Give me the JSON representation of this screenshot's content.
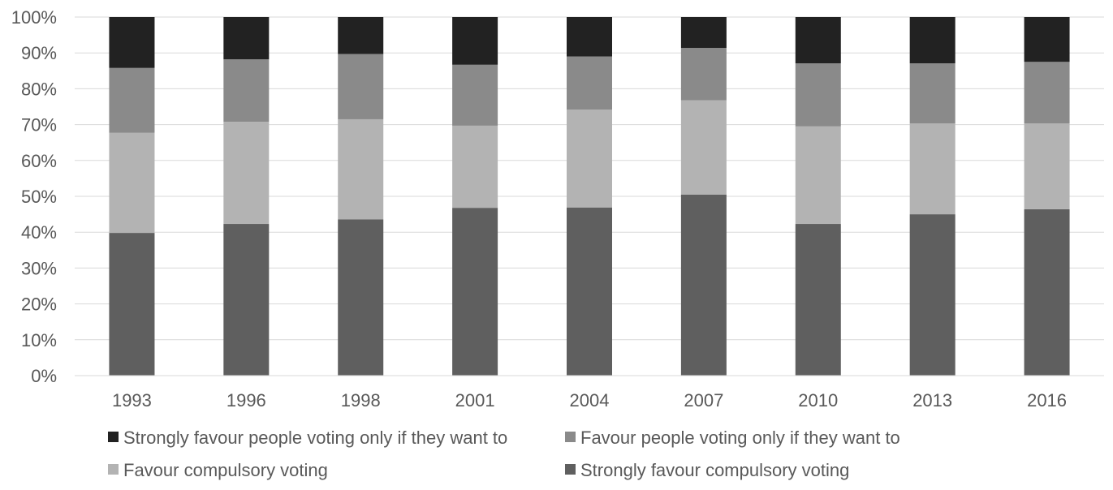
{
  "chart_data": {
    "type": "bar",
    "stacked": true,
    "percent_stacked": true,
    "categories": [
      "1993",
      "1996",
      "1998",
      "2001",
      "2004",
      "2007",
      "2010",
      "2013",
      "2016"
    ],
    "series": [
      {
        "name": "Strongly favour compulsory voting",
        "color": "#5f5f5f",
        "values": [
          39.8,
          42.3,
          43.6,
          46.8,
          46.9,
          50.5,
          42.3,
          45.0,
          46.4
        ]
      },
      {
        "name": "Favour compulsory voting",
        "color": "#b3b3b3",
        "values": [
          27.9,
          28.5,
          27.9,
          22.9,
          27.3,
          26.3,
          27.2,
          25.3,
          23.9
        ]
      },
      {
        "name": "Favour people voting only if they want to",
        "color": "#8a8a8a",
        "values": [
          18.1,
          17.4,
          18.2,
          17.0,
          14.8,
          14.6,
          17.6,
          16.8,
          17.2
        ]
      },
      {
        "name": "Strongly favour people voting only if they want to",
        "color": "#222222",
        "values": [
          14.2,
          11.8,
          10.3,
          13.3,
          11.0,
          8.6,
          12.9,
          12.9,
          12.5
        ]
      }
    ],
    "y_ticks": [
      "0%",
      "10%",
      "20%",
      "30%",
      "40%",
      "50%",
      "60%",
      "70%",
      "80%",
      "90%",
      "100%"
    ],
    "ylim": [
      0,
      100
    ],
    "grid": true,
    "legend_position": "bottom",
    "legend_order": [
      3,
      2,
      1,
      0
    ]
  }
}
